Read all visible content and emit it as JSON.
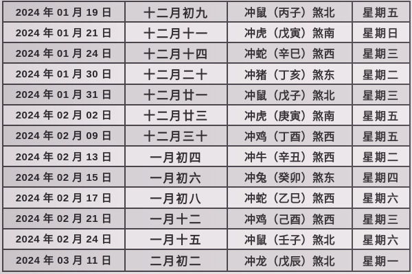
{
  "colors": {
    "border": "#49444a",
    "row_dark": "#d9d4d8",
    "row_light": "#ece7ea",
    "text": "#2e2a2e"
  },
  "table": {
    "rows": [
      {
        "date": "2024 年 01 月 19 日",
        "lunar": "十二月初九",
        "clash": "冲鼠（丙子）煞北",
        "weekday": "星期五"
      },
      {
        "date": "2024 年 01 月 21 日",
        "lunar": "十二月十一",
        "clash": "冲虎（戊寅）煞南",
        "weekday": "星期日"
      },
      {
        "date": "2024 年 01 月 24 日",
        "lunar": "十二月十四",
        "clash": "冲蛇（辛巳）煞西",
        "weekday": "星期三"
      },
      {
        "date": "2024 年 01 月 30 日",
        "lunar": "十二月二十",
        "clash": "冲猪（丁亥）煞东",
        "weekday": "星期二"
      },
      {
        "date": "2024 年 01 月 31 日",
        "lunar": "十二月廿一",
        "clash": "冲鼠（戊子）煞北",
        "weekday": "星期三"
      },
      {
        "date": "2024 年 02 月 02 日",
        "lunar": "十二月廿三",
        "clash": "冲虎（庚寅）煞南",
        "weekday": "星期五"
      },
      {
        "date": "2024 年 02 月 09 日",
        "lunar": "十二月三十",
        "clash": "冲鸡（丁酉）煞西",
        "weekday": "星期五"
      },
      {
        "date": "2024 年 02 月 13 日",
        "lunar": "一月初四",
        "clash": "冲牛（辛丑）煞西",
        "weekday": "星期二"
      },
      {
        "date": "2024 年 02 月 15 日",
        "lunar": "一月初六",
        "clash": "冲兔（癸卯）煞东",
        "weekday": "星期四"
      },
      {
        "date": "2024 年 02 月 17 日",
        "lunar": "一月初八",
        "clash": "冲蛇（乙巳）煞西",
        "weekday": "星期六"
      },
      {
        "date": "2024 年 02 月 21 日",
        "lunar": "一月十二",
        "clash": "冲鸡（己酉）煞西",
        "weekday": "星期三"
      },
      {
        "date": "2024 年 02 月 24 日",
        "lunar": "一月十五",
        "clash": "冲鼠（壬子）煞北",
        "weekday": "星期六"
      },
      {
        "date": "2024 年 03 月 11 日",
        "lunar": "二月初二",
        "clash": "冲龙（戊辰）煞北",
        "weekday": "星期一"
      }
    ]
  }
}
